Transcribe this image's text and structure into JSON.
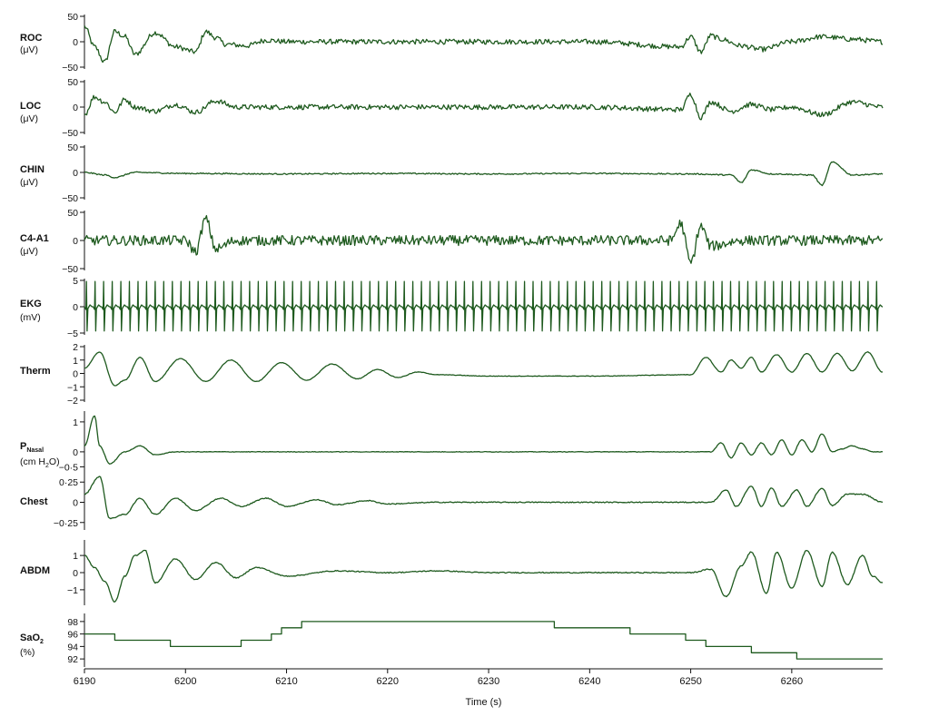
{
  "chart_data": {
    "type": "line",
    "x_range": [
      6190,
      6269
    ],
    "x_ticks": [
      "6190",
      "6200",
      "6210",
      "6220",
      "6230",
      "6240",
      "6250",
      "6260"
    ],
    "x_tick_values": [
      6190,
      6200,
      6210,
      6220,
      6230,
      6240,
      6250,
      6260
    ],
    "xlabel": "Time (s)",
    "panels": [
      {
        "key": "roc",
        "label": "ROC",
        "unit": "(μV)",
        "ylim": [
          -50,
          50
        ],
        "ticks": [
          {
            "v": 50,
            "t": "50"
          },
          {
            "v": 0,
            "t": "0"
          },
          {
            "v": -50,
            "t": "−50"
          }
        ],
        "x": [
          6190,
          6191,
          6192,
          6193,
          6194,
          6195,
          6197,
          6199,
          6201,
          6202,
          6203,
          6204,
          6206,
          6208,
          6210,
          6220,
          6230,
          6240,
          6249,
          6250,
          6251,
          6252,
          6253,
          6255,
          6257,
          6260,
          6263,
          6266,
          6269
        ],
        "y": [
          30,
          -10,
          -40,
          20,
          10,
          -25,
          18,
          -10,
          -20,
          20,
          8,
          -5,
          -8,
          3,
          0,
          0,
          0,
          0,
          -10,
          10,
          -20,
          12,
          5,
          -8,
          -15,
          0,
          10,
          5,
          0
        ]
      },
      {
        "key": "loc",
        "label": "LOC",
        "unit": "(μV)",
        "ylim": [
          -50,
          50
        ],
        "ticks": [
          {
            "v": 50,
            "t": "50"
          },
          {
            "v": 0,
            "t": "0"
          },
          {
            "v": -50,
            "t": "−50"
          }
        ],
        "x": [
          6190,
          6191,
          6192,
          6193,
          6194,
          6195,
          6197,
          6199,
          6201,
          6203,
          6205,
          6210,
          6220,
          6230,
          6240,
          6249,
          6250,
          6251,
          6252,
          6254,
          6256,
          6258,
          6260,
          6263,
          6266,
          6269
        ],
        "y": [
          -15,
          20,
          10,
          -10,
          15,
          0,
          -8,
          5,
          -10,
          12,
          0,
          0,
          0,
          0,
          0,
          -5,
          25,
          -20,
          10,
          -8,
          5,
          -5,
          0,
          -15,
          10,
          0
        ]
      },
      {
        "key": "chin",
        "label": "CHIN",
        "unit": "(μV)",
        "ylim": [
          -50,
          50
        ],
        "ticks": [
          {
            "v": 50,
            "t": "50"
          },
          {
            "v": 0,
            "t": "0"
          },
          {
            "v": -50,
            "t": "−50"
          }
        ],
        "x": [
          6190,
          6192,
          6193,
          6195,
          6200,
          6210,
          6220,
          6230,
          6240,
          6250,
          6254,
          6255,
          6256,
          6258,
          6262,
          6263,
          6264,
          6266,
          6269
        ],
        "y": [
          0,
          -5,
          -10,
          0,
          -2,
          -3,
          -2,
          -3,
          -2,
          -3,
          -5,
          -20,
          5,
          -3,
          -5,
          -25,
          20,
          -5,
          -3
        ]
      },
      {
        "key": "c4a1",
        "label": "C4-A1",
        "unit": "(μV)",
        "ylim": [
          -50,
          50
        ],
        "ticks": [
          {
            "v": 50,
            "t": "50"
          },
          {
            "v": 0,
            "t": "0"
          },
          {
            "v": -50,
            "t": "−50"
          }
        ],
        "x": [
          6190,
          6195,
          6200,
          6201,
          6202,
          6203,
          6205,
          6210,
          6220,
          6230,
          6240,
          6248,
          6249,
          6250,
          6251,
          6252,
          6255,
          6260,
          6265,
          6269
        ],
        "y": [
          0,
          0,
          0,
          -20,
          38,
          -15,
          0,
          0,
          0,
          0,
          0,
          0,
          30,
          -40,
          25,
          -10,
          0,
          0,
          0,
          0
        ]
      },
      {
        "key": "ekg",
        "label": "EKG",
        "unit": "(mV)",
        "ylim": [
          -5,
          5
        ],
        "ticks": [
          {
            "v": 5,
            "t": "5"
          },
          {
            "v": 0,
            "t": "0"
          },
          {
            "v": -5,
            "t": "−5"
          }
        ],
        "x": [
          6190,
          6269
        ],
        "y": [
          0,
          0
        ],
        "beat_interval_s": 0.85
      },
      {
        "key": "therm",
        "label": "Therm",
        "unit": "",
        "ylim": [
          -2,
          2
        ],
        "ticks": [
          {
            "v": 2,
            "t": "2"
          },
          {
            "v": 1,
            "t": "1"
          },
          {
            "v": 0,
            "t": "0"
          },
          {
            "v": -1,
            "t": "−1"
          },
          {
            "v": -2,
            "t": "−2"
          }
        ],
        "x": [
          6190,
          6191.5,
          6193,
          6194,
          6195.5,
          6197,
          6199.5,
          6202,
          6204.5,
          6207,
          6209.5,
          6212,
          6214.5,
          6217,
          6219,
          6221,
          6223,
          6225,
          6230,
          6240,
          6250,
          6251.5,
          6253,
          6254,
          6255,
          6256,
          6257,
          6258.5,
          6260,
          6261.5,
          6263,
          6264.5,
          6266,
          6267.5,
          6269
        ],
        "y": [
          0.4,
          1.6,
          -0.9,
          -0.5,
          1.2,
          -0.6,
          1.1,
          -0.6,
          1.0,
          -0.6,
          0.8,
          -0.5,
          0.7,
          -0.4,
          0.3,
          -0.3,
          0.1,
          -0.1,
          -0.2,
          -0.2,
          -0.1,
          1.2,
          0.1,
          1.0,
          0.4,
          1.2,
          0.1,
          1.4,
          0.1,
          1.5,
          0.1,
          1.5,
          0.2,
          1.6,
          0.1
        ]
      },
      {
        "key": "pnasal",
        "label": "P",
        "label_sub": "Nasal",
        "unit": "(cm H",
        "unit_sub": "2",
        "unit_end": "O)",
        "ylim": [
          -0.7,
          1.3
        ],
        "ticks": [
          {
            "v": 1,
            "t": "1"
          },
          {
            "v": 0,
            "t": "0"
          },
          {
            "v": -0.5,
            "t": "−0·5"
          }
        ],
        "x": [
          6190,
          6191,
          6191.5,
          6192.5,
          6194,
          6195.5,
          6197,
          6199,
          6202,
          6210,
          6220,
          6230,
          6240,
          6252,
          6253,
          6254,
          6255,
          6256,
          6257,
          6258,
          6259,
          6260,
          6261,
          6262,
          6263,
          6264,
          6265,
          6266,
          6267,
          6268,
          6269
        ],
        "y": [
          0.2,
          1.2,
          0.2,
          -0.4,
          0.0,
          0.2,
          -0.1,
          0.0,
          0.0,
          0.0,
          0.0,
          0.0,
          0.0,
          0.0,
          0.3,
          -0.2,
          0.3,
          -0.1,
          0.3,
          -0.1,
          0.4,
          -0.1,
          0.4,
          0.0,
          0.6,
          0.0,
          0.1,
          0.2,
          0.1,
          0.0,
          0.0
        ]
      },
      {
        "key": "chest",
        "label": "Chest",
        "unit": "",
        "ylim": [
          -0.32,
          0.32
        ],
        "ticks": [
          {
            "v": 0.25,
            "t": "0·25"
          },
          {
            "v": 0,
            "t": "0"
          },
          {
            "v": -0.25,
            "t": "−0·25"
          }
        ],
        "x": [
          6190,
          6191.5,
          6192.5,
          6194,
          6195.5,
          6197,
          6199,
          6201,
          6203.5,
          6205.5,
          6208,
          6210,
          6213,
          6215,
          6218,
          6220,
          6225,
          6230,
          6240,
          6250,
          6252,
          6253.5,
          6254.5,
          6256,
          6257,
          6258,
          6259,
          6260.5,
          6261.5,
          6263,
          6264,
          6265.5,
          6267,
          6269
        ],
        "y": [
          0.1,
          0.32,
          -0.2,
          -0.15,
          0.05,
          -0.15,
          0.05,
          -0.1,
          0.05,
          -0.05,
          0.05,
          -0.05,
          0.03,
          -0.03,
          0.02,
          -0.02,
          0.0,
          0.0,
          0.0,
          0.0,
          0.0,
          0.15,
          -0.05,
          0.2,
          -0.05,
          0.18,
          -0.05,
          0.15,
          -0.05,
          0.17,
          -0.04,
          0.1,
          0.1,
          0.0
        ]
      },
      {
        "key": "abdm",
        "label": "ABDM",
        "unit": "",
        "ylim": [
          -1.8,
          1.8
        ],
        "ticks": [
          {
            "v": 1,
            "t": "1"
          },
          {
            "v": 0,
            "t": "0"
          },
          {
            "v": -1,
            "t": "−1"
          }
        ],
        "x": [
          6190,
          6191,
          6192,
          6193,
          6194,
          6195,
          6196,
          6197,
          6199,
          6201,
          6203,
          6205,
          6207,
          6210,
          6215,
          6220,
          6225,
          6230,
          6240,
          6250,
          6252,
          6253.5,
          6255,
          6256,
          6257.5,
          6258.5,
          6260,
          6261.5,
          6263,
          6264,
          6265.5,
          6267,
          6268,
          6269
        ],
        "y": [
          1.0,
          0.3,
          -0.5,
          -1.7,
          -0.2,
          1.0,
          1.3,
          -0.6,
          0.8,
          -0.4,
          0.6,
          -0.3,
          0.3,
          -0.2,
          0.1,
          0.0,
          0.1,
          0.0,
          0.0,
          0.0,
          0.2,
          -1.4,
          0.4,
          1.2,
          -1.2,
          1.2,
          -0.9,
          1.3,
          -0.8,
          1.2,
          -0.7,
          1.0,
          -0.2,
          -0.6
        ]
      },
      {
        "key": "sao2",
        "label": "SaO",
        "label_sub": "2",
        "unit": "(%)",
        "ylim": [
          91,
          99
        ],
        "ticks": [
          {
            "v": 98,
            "t": "98"
          },
          {
            "v": 96,
            "t": "96"
          },
          {
            "v": 94,
            "t": "94"
          },
          {
            "v": 92,
            "t": "92"
          }
        ],
        "x": [
          6190,
          6193,
          6193,
          6198.5,
          6198.5,
          6205.5,
          6205.5,
          6208.5,
          6208.5,
          6209.5,
          6209.5,
          6211.5,
          6211.5,
          6236.5,
          6236.5,
          6244,
          6244,
          6249.5,
          6249.5,
          6251.5,
          6251.5,
          6256,
          6256,
          6260.5,
          6260.5,
          6269
        ],
        "y": [
          96,
          96,
          95,
          95,
          94,
          94,
          95,
          95,
          96,
          96,
          97,
          97,
          98,
          98,
          97,
          97,
          96,
          96,
          95,
          95,
          94,
          94,
          93,
          93,
          92,
          92
        ]
      }
    ]
  }
}
